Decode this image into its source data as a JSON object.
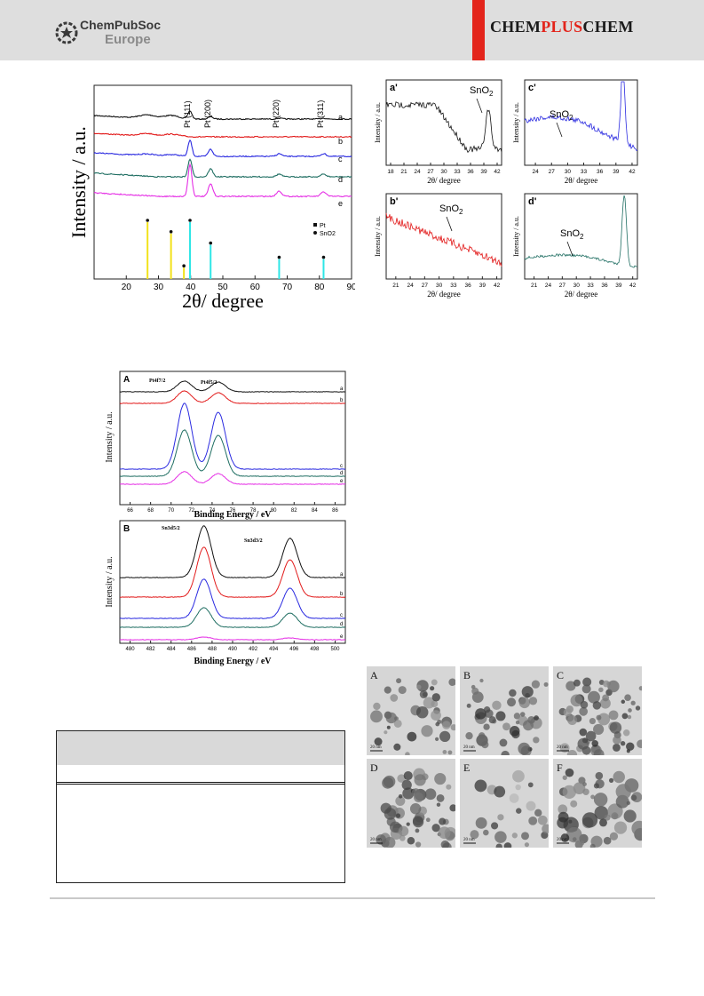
{
  "header": {
    "publisher_name": "ChemPubSoc",
    "publisher_sub": "Europe",
    "journal_left": "CHEM",
    "journal_mid": "PLUS",
    "journal_right": "CHEM",
    "accent_color": "#e3241b"
  },
  "xrd": {
    "ylabel": "Intensity / a.u.",
    "xlabel": "2θ/ degree",
    "peaks": [
      "Pt (111)",
      "Pt (200)",
      "Pt (220)",
      "Pt (311)"
    ],
    "trace_labels": [
      "a",
      "b",
      "c",
      "d",
      "e"
    ],
    "legend": [
      "Pt",
      "SnO2"
    ],
    "xticks": [
      "20",
      "30",
      "40",
      "50",
      "60",
      "70",
      "80",
      "90"
    ]
  },
  "insets": {
    "panels": [
      "a'",
      "b'",
      "c'",
      "d'"
    ],
    "annotation": "SnO2",
    "ylabel": "Intensity / a.u.",
    "xlabel": "2θ/ degree",
    "ticks_a": [
      "18",
      "21",
      "24",
      "27",
      "30",
      "33",
      "36",
      "39",
      "42"
    ],
    "ticks_b": [
      "21",
      "24",
      "27",
      "30",
      "33",
      "36",
      "39",
      "42"
    ],
    "ticks_c": [
      "24",
      "27",
      "30",
      "33",
      "36",
      "39",
      "42"
    ],
    "ticks_d": [
      "21",
      "24",
      "27",
      "30",
      "33",
      "36",
      "39",
      "42"
    ]
  },
  "xps_pt": {
    "panel": "A",
    "ylabel": "Intensity / a.u.",
    "xlabel": "Binding Energy / eV",
    "peak_left": "Pt4f7/2",
    "peak_right": "Pt4f5/2",
    "xticks": [
      "66",
      "68",
      "70",
      "72",
      "74",
      "76",
      "78",
      "80",
      "82",
      "84",
      "86"
    ],
    "trace_labels": [
      "a",
      "b",
      "c",
      "d",
      "e"
    ]
  },
  "xps_sn": {
    "panel": "B",
    "ylabel": "Intensity / a.u.",
    "xlabel": "Binding Energy / eV",
    "peak_left": "Sn3d5/2",
    "peak_right": "Sn3d3/2",
    "xticks": [
      "480",
      "482",
      "484",
      "486",
      "488",
      "490",
      "492",
      "494",
      "496",
      "498",
      "500"
    ],
    "trace_labels": [
      "a",
      "b",
      "c",
      "d",
      "e"
    ]
  },
  "tem": {
    "panels": [
      "A",
      "B",
      "C",
      "D",
      "E",
      "F"
    ],
    "scale_label": "20 nm"
  },
  "chart_data": [
    {
      "type": "line",
      "xlabel": "2θ/ degree",
      "ylabel": "Intensity / a.u.",
      "xlim": [
        10,
        90
      ],
      "series": [
        {
          "name": "a",
          "color": "#111111"
        },
        {
          "name": "b",
          "color": "#e21b1b"
        },
        {
          "name": "c",
          "color": "#2a2ae0"
        },
        {
          "name": "d",
          "color": "#1f6e62"
        },
        {
          "name": "e",
          "color": "#e52fe5"
        }
      ],
      "reference_sticks": [
        {
          "x": 26.6,
          "rel": 1.0,
          "color": "#f2e21b"
        },
        {
          "x": 33.9,
          "rel": 0.8,
          "color": "#f2e21b"
        },
        {
          "x": 37.9,
          "rel": 0.2,
          "color": "#f2e21b"
        },
        {
          "x": 39.8,
          "rel": 1.0,
          "color": "#2ee6e6"
        },
        {
          "x": 46.2,
          "rel": 0.6,
          "color": "#2ee6e6"
        },
        {
          "x": 67.5,
          "rel": 0.35,
          "color": "#2ee6e6"
        },
        {
          "x": 81.3,
          "rel": 0.35,
          "color": "#2ee6e6"
        }
      ]
    },
    {
      "type": "line",
      "xlabel": "Binding Energy / eV",
      "ylabel": "Intensity / a.u.",
      "xlim": [
        65,
        87
      ],
      "series": [
        {
          "name": "a"
        },
        {
          "name": "b"
        },
        {
          "name": "c"
        },
        {
          "name": "d"
        },
        {
          "name": "e"
        }
      ]
    },
    {
      "type": "line",
      "xlabel": "Binding Energy / eV",
      "ylabel": "Intensity / a.u.",
      "xlim": [
        479,
        501
      ],
      "series": [
        {
          "name": "a"
        },
        {
          "name": "b"
        },
        {
          "name": "c"
        },
        {
          "name": "d"
        },
        {
          "name": "e"
        }
      ]
    }
  ]
}
